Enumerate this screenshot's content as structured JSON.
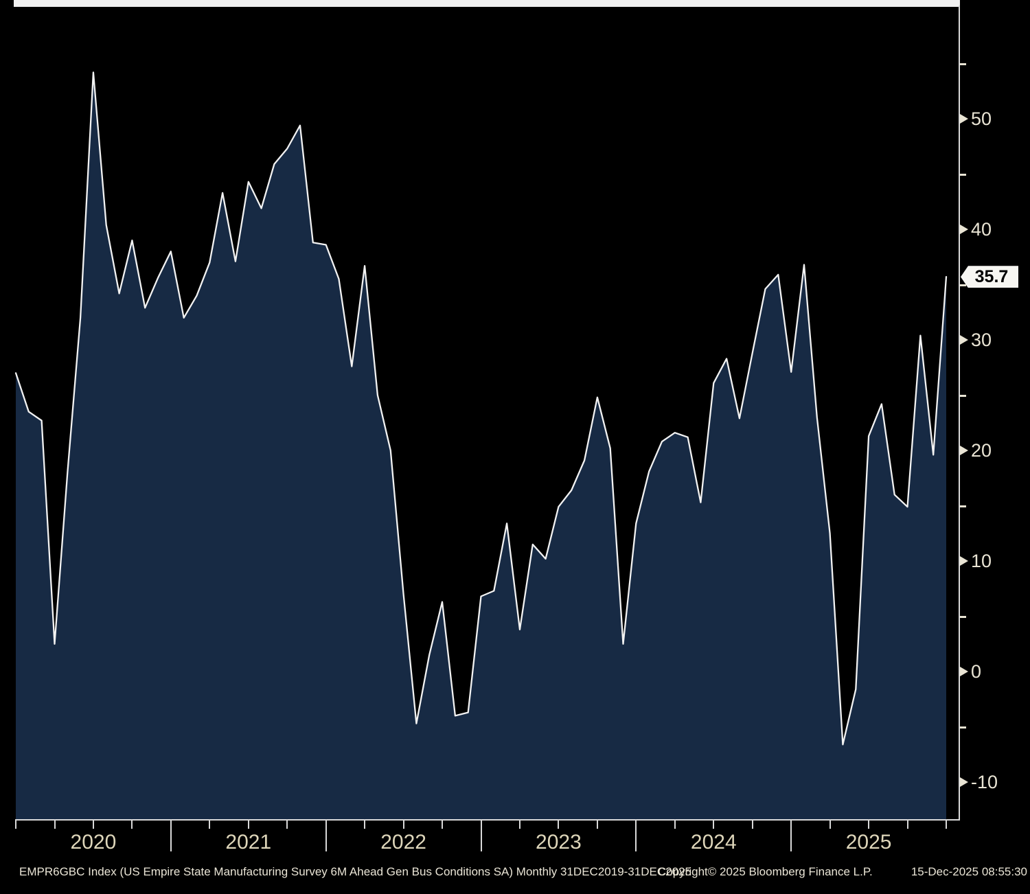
{
  "chart_data": {
    "type": "area",
    "title": "US Empire State Manufacturing Survey 6M Ahead Gen Bus Conditions SA",
    "security": "EMPR6GBC Index",
    "frequency": "Monthly",
    "period": "31DEC2019-31DEC2025",
    "grid": false,
    "legend_position": "none",
    "y_axis_side": "right",
    "ylim": [
      -13.3,
      60.1
    ],
    "y_ticks_major": [
      50,
      40,
      30,
      20,
      10,
      0,
      -10
    ],
    "y_ticks_minor": [
      55,
      45,
      35,
      25,
      15,
      5,
      -5
    ],
    "x_year_labels": [
      "2020",
      "2021",
      "2022",
      "2023",
      "2024",
      "2025"
    ],
    "x": [
      "Dec-2019",
      "Jan-2020",
      "Feb-2020",
      "Mar-2020",
      "Apr-2020",
      "May-2020",
      "Jun-2020",
      "Jul-2020",
      "Aug-2020",
      "Sep-2020",
      "Oct-2020",
      "Nov-2020",
      "Dec-2020",
      "Jan-2021",
      "Feb-2021",
      "Mar-2021",
      "Apr-2021",
      "May-2021",
      "Jun-2021",
      "Jul-2021",
      "Aug-2021",
      "Sep-2021",
      "Oct-2021",
      "Nov-2021",
      "Dec-2021",
      "Jan-2022",
      "Feb-2022",
      "Mar-2022",
      "Apr-2022",
      "May-2022",
      "Jun-2022",
      "Jul-2022",
      "Aug-2022",
      "Sep-2022",
      "Oct-2022",
      "Nov-2022",
      "Dec-2022",
      "Jan-2023",
      "Feb-2023",
      "Mar-2023",
      "Apr-2023",
      "May-2023",
      "Jun-2023",
      "Jul-2023",
      "Aug-2023",
      "Sep-2023",
      "Oct-2023",
      "Nov-2023",
      "Dec-2023",
      "Jan-2024",
      "Feb-2024",
      "Mar-2024",
      "Apr-2024",
      "May-2024",
      "Jun-2024",
      "Jul-2024",
      "Aug-2024",
      "Sep-2024",
      "Oct-2024",
      "Nov-2024",
      "Dec-2024",
      "Jan-2025",
      "Feb-2025",
      "Mar-2025",
      "Apr-2025",
      "May-2025",
      "Jun-2025",
      "Jul-2025",
      "Aug-2025",
      "Sep-2025",
      "Oct-2025",
      "Nov-2025",
      "Dec-2025"
    ],
    "values": [
      27.0,
      23.5,
      22.7,
      2.5,
      18.0,
      32.0,
      54.2,
      40.4,
      34.2,
      39.0,
      32.9,
      35.6,
      38.0,
      32.0,
      34.0,
      37.0,
      43.3,
      37.1,
      44.3,
      41.9,
      45.9,
      47.3,
      49.4,
      38.8,
      38.6,
      35.5,
      27.6,
      36.7,
      25.0,
      20.0,
      7.0,
      -4.7,
      1.5,
      6.3,
      -4.0,
      -3.7,
      6.8,
      7.3,
      13.4,
      3.8,
      11.5,
      10.2,
      14.9,
      16.4,
      19.1,
      24.8,
      20.2,
      2.5,
      13.4,
      18.1,
      20.8,
      21.6,
      21.2,
      15.3,
      26.1,
      28.3,
      22.9,
      28.8,
      34.6,
      35.9,
      27.1,
      36.8,
      23.0,
      12.5,
      -6.6,
      -1.6,
      21.3,
      24.2,
      16.0,
      14.9,
      30.4,
      19.6,
      35.7
    ],
    "last_value": 35.7
  },
  "last_value_label": "35.7",
  "footer": {
    "ticker_line": "EMPR6GBC Index (US Empire State Manufacturing Survey 6M Ahead Gen Bus Conditions SA) Monthly 31DEC2019-31DEC2025",
    "copyright": "Copyright© 2025 Bloomberg Finance L.P.",
    "timestamp": "15-Dec-2025 08:55:30"
  },
  "colors": {
    "background": "#000000",
    "area_fill": "#172a44",
    "line": "#f2f2f2",
    "axis": "#d9d9d9",
    "tick_label": "#e9e4d4",
    "year_label": "#ded6ba",
    "tag_bg": "#f7f6f2",
    "tag_text": "#000000"
  }
}
